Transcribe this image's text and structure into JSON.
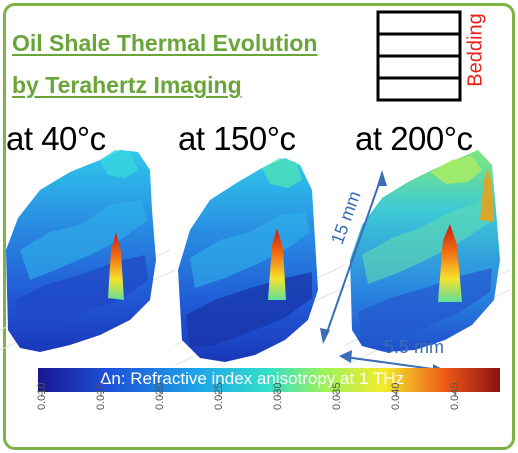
{
  "title": {
    "line1": "Oil Shale Thermal Evolution",
    "line2": "by Terahertz Imaging"
  },
  "temperatures": [
    "at 40°c",
    "at 150°c",
    "at 200°c"
  ],
  "bedding_label": "Bedding",
  "dimensions": {
    "height": "15 mm",
    "width": "5.5 mm"
  },
  "colorbar": {
    "label": "Δn: Refractive index anisotropy at 1 THz",
    "ticks": [
      "0.010",
      "0.015",
      "0.020",
      "0.025",
      "0.030",
      "0.035",
      "0.040",
      "0.045"
    ]
  },
  "colors": {
    "title": "#6aa539",
    "frame": "#7eb247",
    "bedding": "#e8221b",
    "arrow": "#3a6db5"
  }
}
